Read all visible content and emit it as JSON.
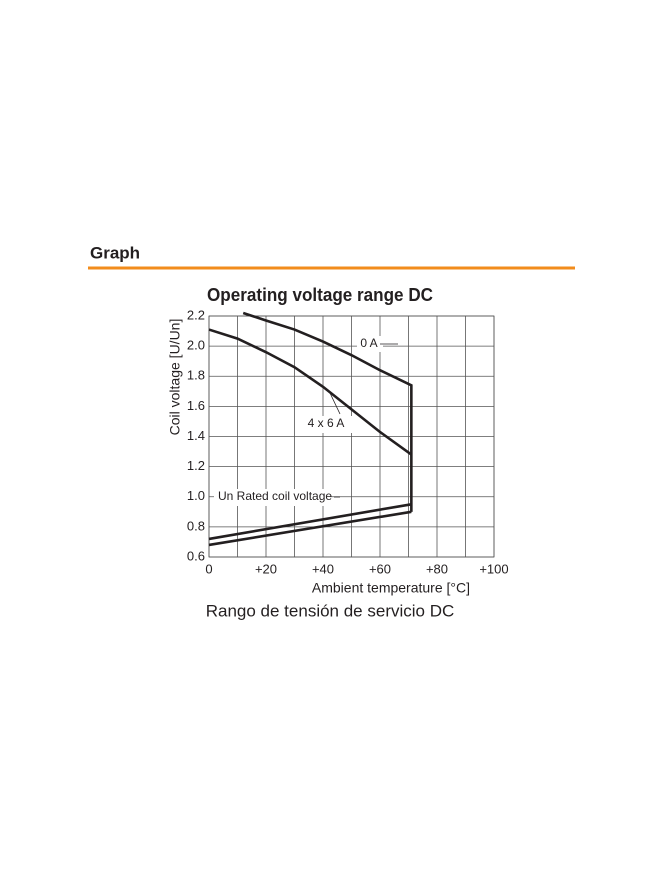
{
  "header": {
    "title": "Graph"
  },
  "chart_data": {
    "type": "line",
    "title": "Operating voltage range DC",
    "caption": "Rango de tensión de servicio DC",
    "xlabel": "Ambient temperature [°C]",
    "ylabel": "Coil voltage [U/Un]",
    "xlim": [
      0,
      100
    ],
    "ylim": [
      0.6,
      2.2
    ],
    "xticks": [
      0,
      {
        "value": 20,
        "label": "+20"
      },
      {
        "value": 40,
        "label": "+40"
      },
      {
        "value": 60,
        "label": "+60"
      },
      {
        "value": 80,
        "label": "+80"
      },
      {
        "value": 100,
        "label": "+100"
      }
    ],
    "yticks": [
      0.6,
      0.8,
      {
        "value": 1,
        "label": "1.0"
      },
      1.2,
      1.4,
      1.6,
      1.8,
      {
        "value": 2,
        "label": "2.0"
      },
      2.2
    ],
    "grid": true,
    "x_minor_grid": true,
    "color": "#231f20",
    "annotations": [
      "0 A",
      "4 x 6 A",
      "Un Rated coil voltage"
    ],
    "series": [
      {
        "x": [
          12,
          20,
          30,
          40,
          50,
          60,
          71,
          71
        ],
        "values": [
          2.22,
          2.17,
          2.11,
          2.03,
          1.94,
          1.84,
          1.74,
          0.9
        ]
      },
      {
        "x": [
          0,
          10,
          20,
          30,
          40,
          50,
          60,
          71
        ],
        "values": [
          2.11,
          2.05,
          1.96,
          1.86,
          1.73,
          1.58,
          1.43,
          1.28
        ]
      },
      {
        "x": [
          0,
          71
        ],
        "values": [
          0.72,
          0.95
        ]
      },
      {
        "x": [
          0,
          71
        ],
        "values": [
          0.68,
          0.9
        ]
      }
    ]
  }
}
